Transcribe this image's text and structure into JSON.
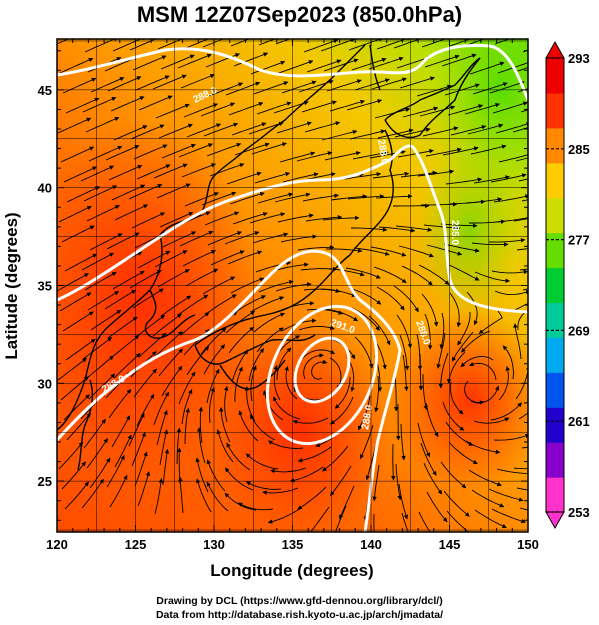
{
  "title": "MSM 12Z07Sep2023 (850.0hPa)",
  "map": {
    "xlabel": "Longitude (degrees)",
    "ylabel": "Latitude  (degrees)",
    "lon_ticks": [
      "120",
      "125",
      "130",
      "135",
      "140",
      "145",
      "150"
    ],
    "lat_ticks": [
      "25",
      "30",
      "35",
      "40",
      "45"
    ],
    "lon_range": [
      120,
      150
    ],
    "lat_range": [
      22.4,
      47.6
    ],
    "contour_labels": [
      "285.0",
      "288.0",
      "288.0",
      "288.0",
      "288.0",
      "288.0",
      "291.0"
    ],
    "colorbar": {
      "ticks": [
        "293",
        "285",
        "277",
        "269",
        "261",
        "253"
      ],
      "range": [
        253,
        293
      ],
      "colors": [
        "#ff33cc",
        "#8800cc",
        "#2200cc",
        "#0055ee",
        "#00aaee",
        "#00cc99",
        "#00cc33",
        "#66dd00",
        "#ccdd00",
        "#ffcc00",
        "#ff8800",
        "#ff3300",
        "#ee0000"
      ]
    }
  },
  "credits": {
    "line1": "Drawing by DCL (https://www.gfd-dennou.org/library/dcl/)",
    "line2": "Data from http://database.rish.kyoto-u.ac.jp/arch/jmadata/"
  }
}
